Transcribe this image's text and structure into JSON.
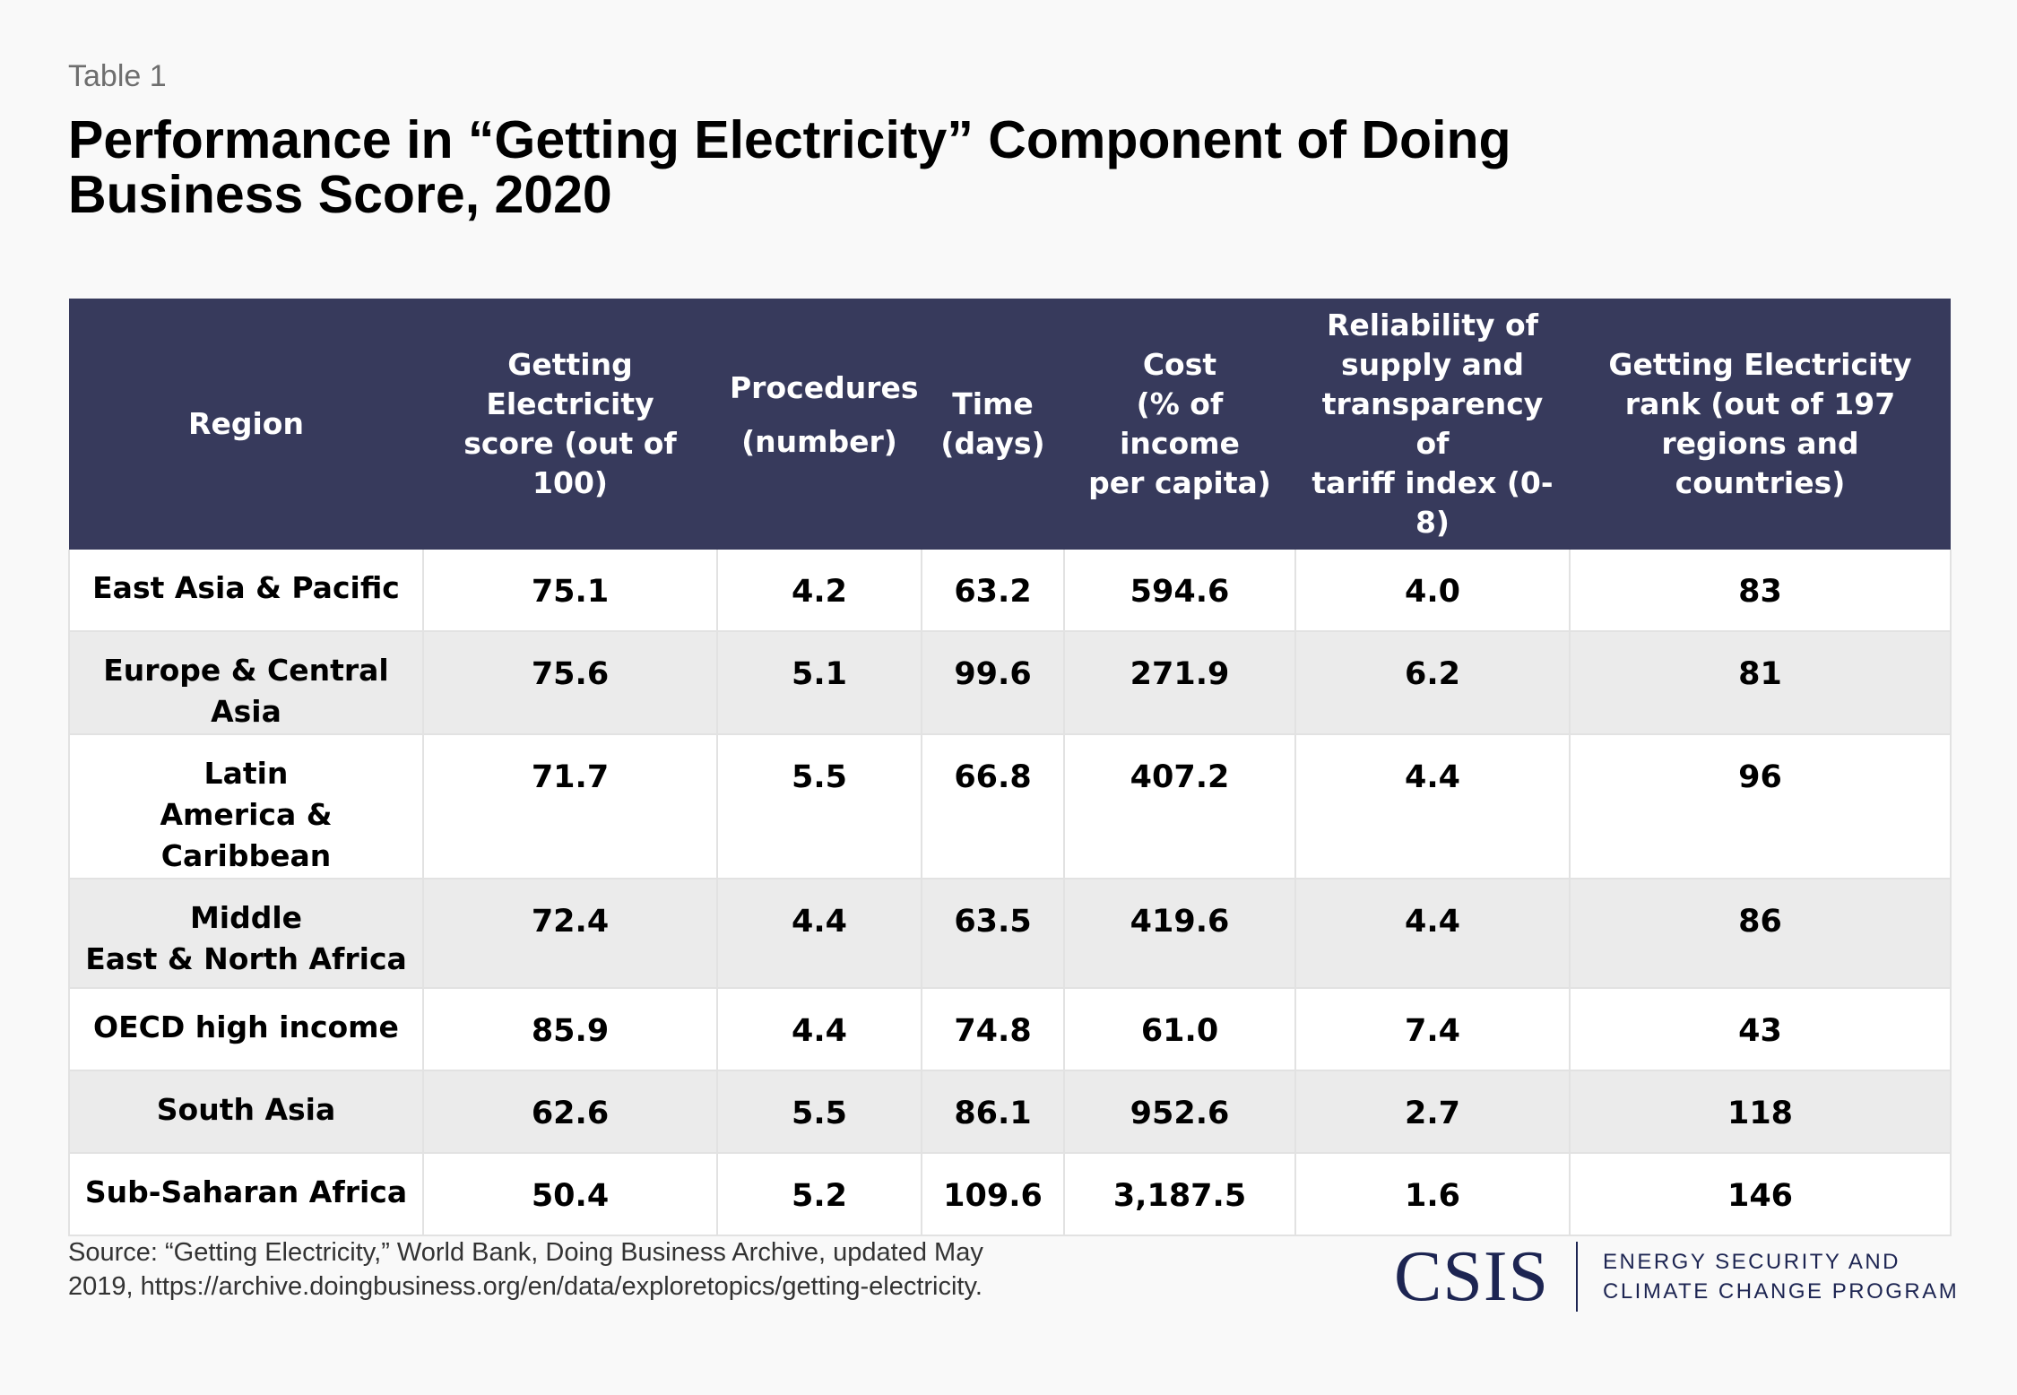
{
  "table_label": "Table 1",
  "title_line1": "Performance in “Getting Electricity” Component of Doing",
  "title_line2": "Business Score, 2020",
  "headers": {
    "region": "Region",
    "score_l1": "Getting",
    "score_l2": "Electricity",
    "score_l3": "score (out of 100)",
    "procedures_l1": "Procedures",
    "procedures_l2": "(number)",
    "time_l1": "Time",
    "time_l2": "(days)",
    "cost_l1": "Cost",
    "cost_l2": "(% of income",
    "cost_l3": "per capita)",
    "reliability_l1": "Reliability of",
    "reliability_l2": "supply and",
    "reliability_l3": "transparency of",
    "reliability_l4": "tariff index (0-8)",
    "rank_l1": "Getting Electricity",
    "rank_l2": "rank (out of 197",
    "rank_l3": "regions and countries)"
  },
  "rows": [
    {
      "region_l1": "East Asia & Pacific",
      "region_l2": "",
      "score": "75.1",
      "procedures": "4.2",
      "time": "63.2",
      "cost": "594.6",
      "reliability": "4.0",
      "rank": "83"
    },
    {
      "region_l1": "Europe & Central Asia",
      "region_l2": "",
      "score": "75.6",
      "procedures": "5.1",
      "time": "99.6",
      "cost": "271.9",
      "reliability": "6.2",
      "rank": "81"
    },
    {
      "region_l1": "Latin",
      "region_l2": "America & Caribbean",
      "score": "71.7",
      "procedures": "5.5",
      "time": "66.8",
      "cost": "407.2",
      "reliability": "4.4",
      "rank": "96"
    },
    {
      "region_l1": "Middle",
      "region_l2": "East & North Africa",
      "score": "72.4",
      "procedures": "4.4",
      "time": "63.5",
      "cost": "419.6",
      "reliability": "4.4",
      "rank": "86"
    },
    {
      "region_l1": "OECD high income",
      "region_l2": "",
      "score": "85.9",
      "procedures": "4.4",
      "time": "74.8",
      "cost": "61.0",
      "reliability": "7.4",
      "rank": "43"
    },
    {
      "region_l1": "South Asia",
      "region_l2": "",
      "score": "62.6",
      "procedures": "5.5",
      "time": "86.1",
      "cost": "952.6",
      "reliability": "2.7",
      "rank": "118"
    },
    {
      "region_l1": "Sub-Saharan Africa",
      "region_l2": "",
      "score": "50.4",
      "procedures": "5.2",
      "time": "109.6",
      "cost": "3,187.5",
      "reliability": "1.6",
      "rank": "146"
    }
  ],
  "source_l1": "Source: “Getting Electricity,” World Bank, Doing Business Archive, updated May",
  "source_l2": "2019, https://archive.doingbusiness.org/en/data/exploretopics/getting-electricity.",
  "logo": {
    "wordmark": "CSIS",
    "program_l1": "ENERGY SECURITY AND",
    "program_l2": "CLIMATE CHANGE PROGRAM"
  },
  "colors": {
    "header_bg": "#373a5c",
    "logo": "#1d2552",
    "stripe": "#ebebeb"
  }
}
